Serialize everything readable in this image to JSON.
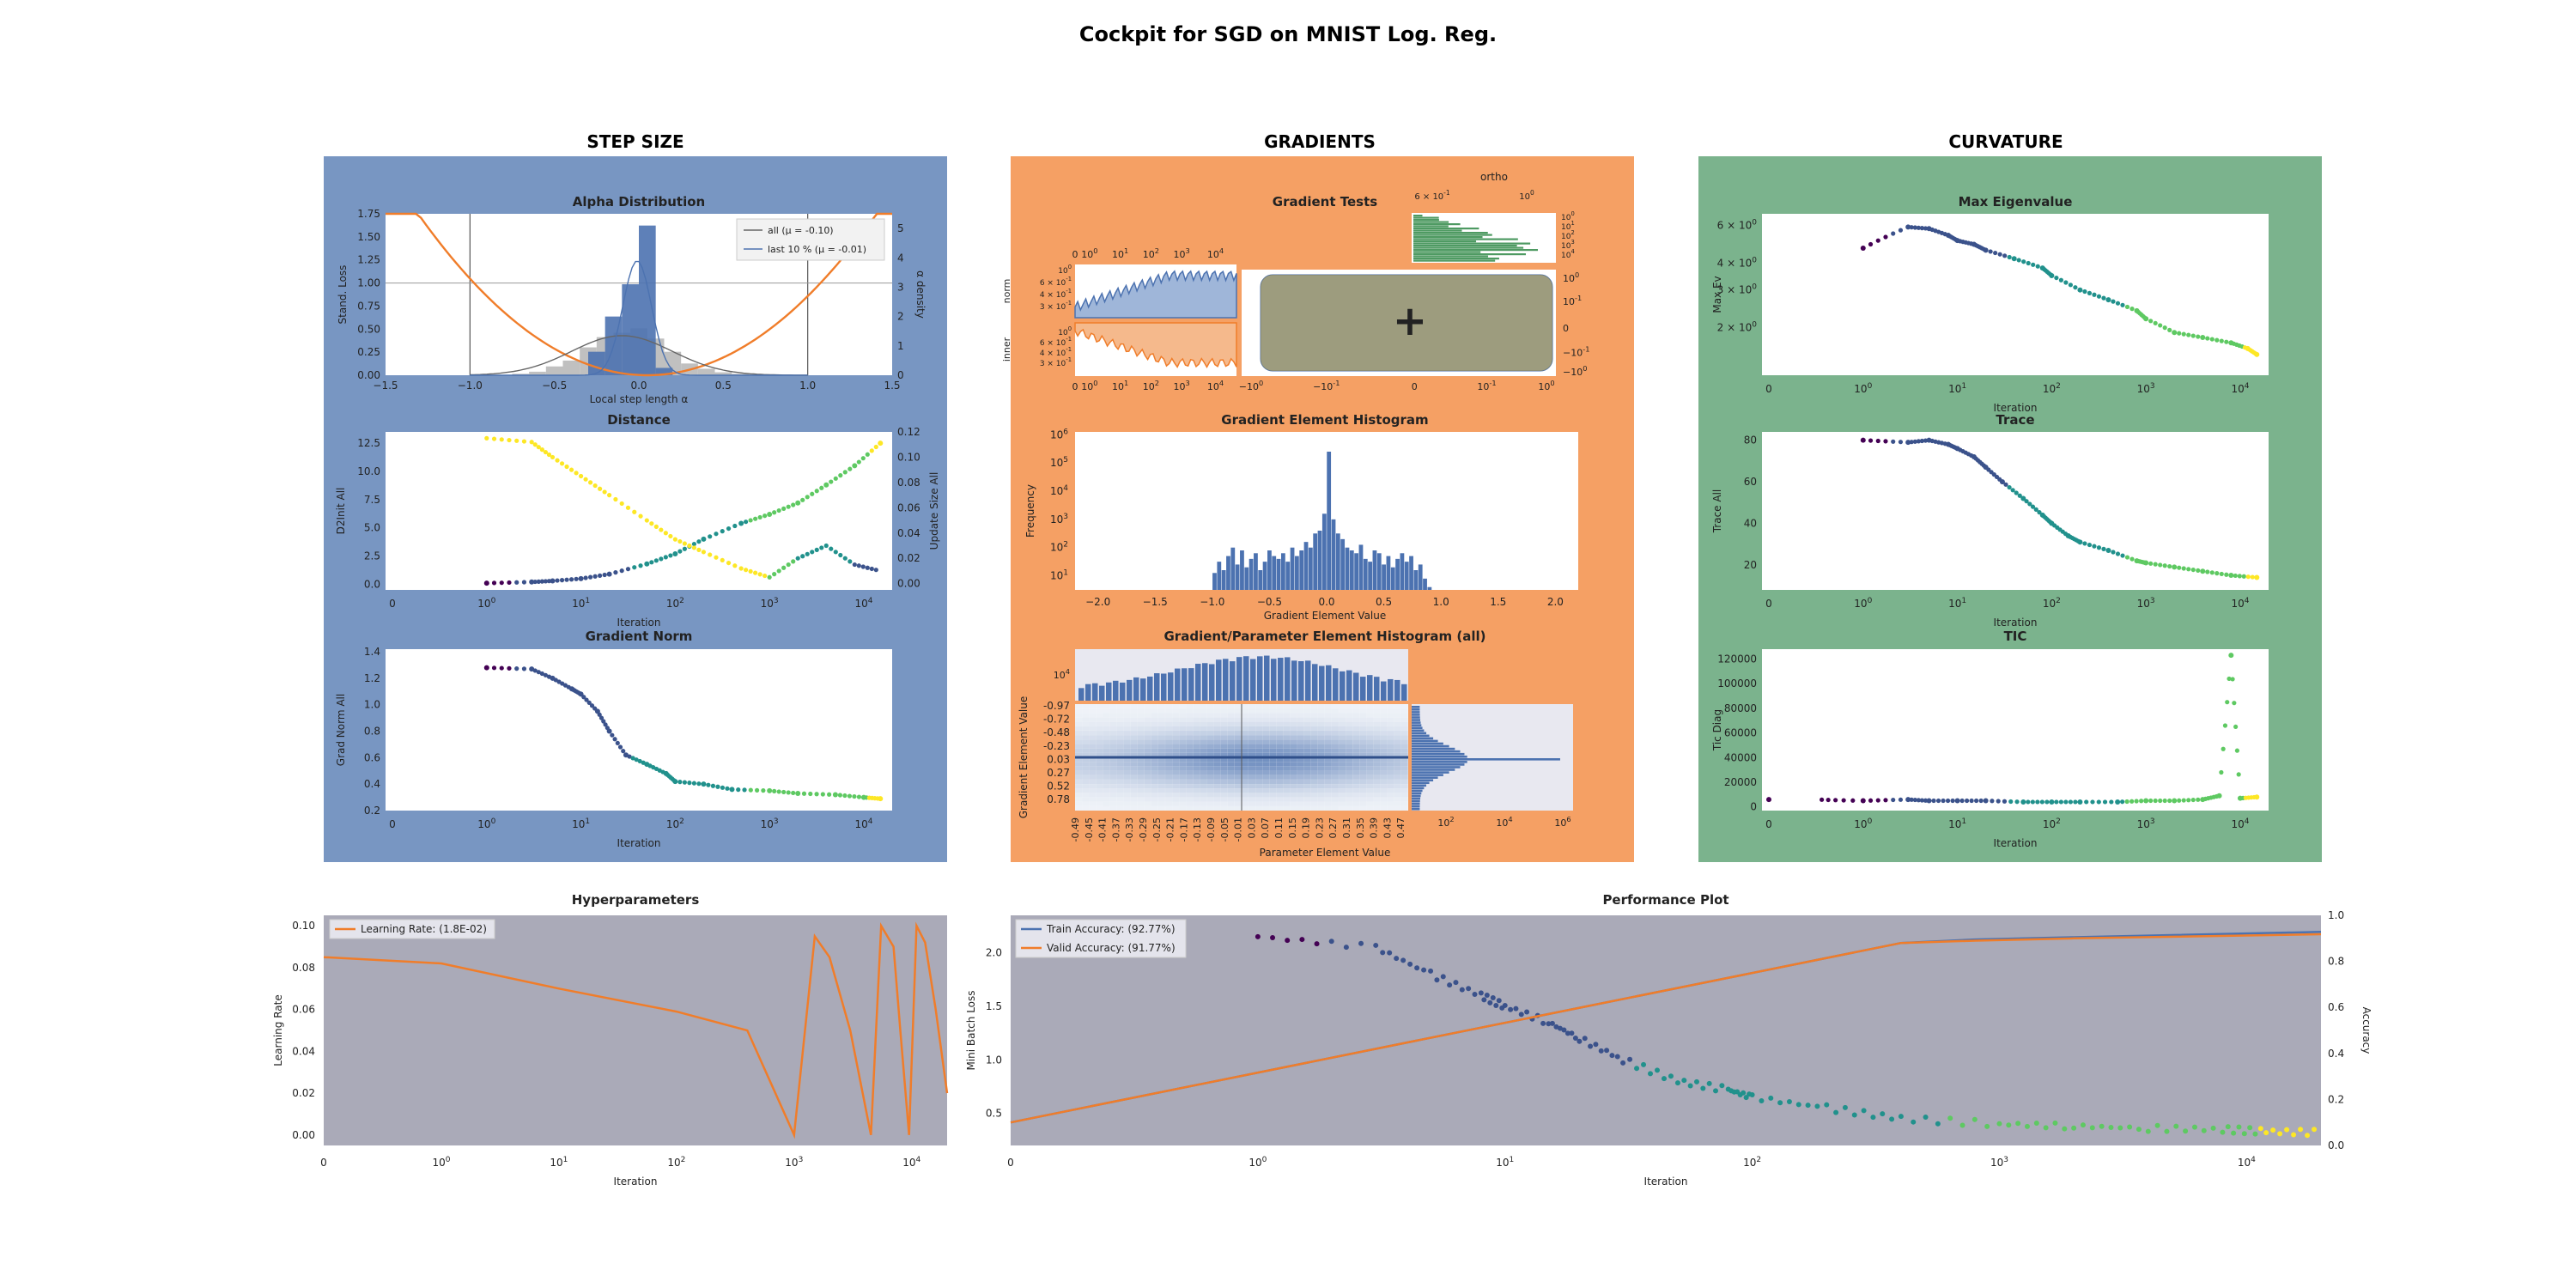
{
  "page": {
    "title": "Cockpit for SGD on MNIST Log. Reg.",
    "sections": {
      "step_size": "STEP SIZE",
      "gradients": "GRADIENTS",
      "curvature": "CURVATURE"
    },
    "colors": {
      "step_size_bg": "#7896c2",
      "gradients_bg": "#f5a064",
      "curvature_bg": "#7bb38d",
      "plot_bg": "#aaaab8",
      "orange": "#f07d2a",
      "blue": "#4c72b0",
      "green": "#4e9a62"
    }
  },
  "chart_data": [
    {
      "id": "alpha",
      "type": "histogram",
      "title": "Alpha Distribution",
      "xlabel": "Local step length α",
      "ylabel": "Stand. Loss",
      "y2label": "α density",
      "xlim": [
        -1.5,
        1.5
      ],
      "ylim": [
        0,
        1.75
      ],
      "y2lim": [
        0,
        5.5
      ],
      "xticks": [
        "−1.5",
        "−1.0",
        "−0.5",
        "0.0",
        "0.5",
        "1.0",
        "1.5"
      ],
      "yticks": [
        "0.00",
        "0.25",
        "0.50",
        "0.75",
        "1.00",
        "1.25",
        "1.50",
        "1.75"
      ],
      "y2ticks": [
        "0",
        "1",
        "2",
        "3",
        "4",
        "5"
      ],
      "legend": [
        "all (μ = -0.10)",
        "last 10 % (μ = -0.01)"
      ],
      "bins_all": {
        "x": [
          -0.7,
          -0.6,
          -0.5,
          -0.4,
          -0.3,
          -0.2,
          -0.1,
          0.0,
          0.1,
          0.2,
          0.3,
          0.4,
          0.5,
          0.6,
          0.7
        ],
        "values": [
          0.05,
          0.12,
          0.3,
          0.5,
          0.95,
          1.3,
          1.45,
          1.6,
          1.25,
          0.8,
          0.4,
          0.22,
          0.1,
          0.05,
          0.02
        ]
      },
      "bins_last": {
        "x": [
          -0.25,
          -0.15,
          -0.05,
          0.05,
          0.15
        ],
        "values": [
          0.8,
          2.0,
          3.1,
          5.1,
          0.25
        ]
      }
    },
    {
      "id": "distance",
      "type": "scatter",
      "title": "Distance",
      "xlabel": "Iteration",
      "ylabel": "D2Init All",
      "y2label": "Update Size All",
      "xscale": "symlog",
      "xticks": [
        "0",
        "10^0",
        "10^1",
        "10^2",
        "10^3",
        "10^4"
      ],
      "ylim": [
        -0.5,
        13.5
      ],
      "yticks": [
        "0.0",
        "2.5",
        "5.0",
        "7.5",
        "10.0",
        "12.5"
      ],
      "y2lim": [
        -0.005,
        0.12
      ],
      "y2ticks": [
        "0.00",
        "0.02",
        "0.04",
        "0.06",
        "0.08",
        "0.10",
        "0.12"
      ],
      "d2init": {
        "x": [
          1,
          3,
          5,
          10,
          20,
          50,
          100,
          200,
          500,
          1000,
          2000,
          4000,
          8000,
          15000
        ],
        "y": [
          0.1,
          0.2,
          0.3,
          0.5,
          0.9,
          1.8,
          2.7,
          4.0,
          5.4,
          6.2,
          7.2,
          8.8,
          10.5,
          12.5
        ]
      },
      "update_size": {
        "x": [
          1,
          3,
          5,
          10,
          20,
          50,
          100,
          200,
          500,
          1000,
          2000,
          4000,
          8000,
          15000
        ],
        "y": [
          0.115,
          0.112,
          0.1,
          0.085,
          0.07,
          0.05,
          0.035,
          0.025,
          0.012,
          0.005,
          0.02,
          0.03,
          0.015,
          0.01
        ]
      }
    },
    {
      "id": "gradnorm",
      "type": "scatter",
      "title": "Gradient Norm",
      "xlabel": "Iteration",
      "ylabel": "Grad Norm All",
      "xscale": "symlog",
      "xticks": [
        "0",
        "10^0",
        "10^1",
        "10^2",
        "10^3",
        "10^4"
      ],
      "ylim": [
        0.2,
        1.42
      ],
      "yticks": [
        "0.2",
        "0.4",
        "0.6",
        "0.8",
        "1.0",
        "1.2",
        "1.4"
      ],
      "points": {
        "x": [
          1,
          3,
          5,
          8,
          10,
          15,
          20,
          30,
          50,
          80,
          100,
          200,
          400,
          1000,
          2000,
          5000,
          10000,
          15000
        ],
        "y": [
          1.28,
          1.27,
          1.2,
          1.12,
          1.08,
          0.95,
          0.8,
          0.62,
          0.55,
          0.48,
          0.42,
          0.4,
          0.36,
          0.35,
          0.33,
          0.32,
          0.3,
          0.29
        ]
      }
    },
    {
      "id": "gradtests",
      "type": "line",
      "title": "Gradient Tests",
      "top_axis_label": "ortho",
      "norm_label": "norm",
      "inner_label": "inner",
      "xticks": [
        "0",
        "10^0",
        "10^1",
        "10^2",
        "10^3",
        "10^4"
      ],
      "norm_yticks": [
        "10^0",
        "6 × 10^-1",
        "4 × 10^-1",
        "3 × 10^-1"
      ],
      "inner_yticks": [
        "10^0",
        "6 × 10^-1",
        "4 × 10^-1",
        "3 × 10^-1"
      ],
      "ortho_xticks": [
        "6 × 10^-1",
        "10^0"
      ],
      "ortho_yticks": [
        "10^0",
        "10^1",
        "10^2",
        "10^3",
        "10^4"
      ],
      "center_xticks": [
        "−10^0",
        "−10^-1",
        "0",
        "10^-1",
        "10^0"
      ],
      "center_yticks": [
        "10^0",
        "10^-1",
        "0",
        "−10^-1",
        "−10^0"
      ]
    },
    {
      "id": "gradhist",
      "type": "bar",
      "title": "Gradient Element Histogram",
      "xlabel": "Gradient Element Value",
      "ylabel": "Frequency",
      "xlim": [
        -2.2,
        2.2
      ],
      "xticks": [
        "−2.0",
        "−1.5",
        "−1.0",
        "−0.5",
        "0.0",
        "0.5",
        "1.0",
        "1.5",
        "2.0"
      ],
      "yscale": "log",
      "ylim_exp": [
        0.5,
        6.1
      ],
      "yticks": [
        "10^1",
        "10^2",
        "10^3",
        "10^4",
        "10^5",
        "10^6"
      ],
      "bins": {
        "x": [
          -0.98,
          -0.94,
          -0.9,
          -0.86,
          -0.82,
          -0.78,
          -0.74,
          -0.7,
          -0.66,
          -0.62,
          -0.58,
          -0.54,
          -0.5,
          -0.46,
          -0.42,
          -0.38,
          -0.34,
          -0.3,
          -0.26,
          -0.22,
          -0.18,
          -0.14,
          -0.1,
          -0.06,
          -0.02,
          0.02,
          0.06,
          0.1,
          0.14,
          0.18,
          0.22,
          0.26,
          0.3,
          0.34,
          0.38,
          0.42,
          0.46,
          0.5,
          0.54,
          0.58,
          0.62,
          0.66,
          0.7,
          0.74,
          0.78,
          0.82,
          0.86,
          0.9,
          0.94,
          0.98
        ],
        "values": [
          1.1,
          1.5,
          1.2,
          1.7,
          2.0,
          1.4,
          1.9,
          1.3,
          1.6,
          1.8,
          1.2,
          1.5,
          1.9,
          1.7,
          1.6,
          1.8,
          1.5,
          2.0,
          1.7,
          1.9,
          2.2,
          2.0,
          2.5,
          2.6,
          3.2,
          5.4,
          3.0,
          2.5,
          2.3,
          2.0,
          1.9,
          1.8,
          2.1,
          1.6,
          1.5,
          1.9,
          1.8,
          1.4,
          1.7,
          1.3,
          1.6,
          1.8,
          1.5,
          1.7,
          1.2,
          1.4,
          0.9,
          0.6,
          0.4,
          0.2
        ]
      }
    },
    {
      "id": "paramhist",
      "type": "heatmap",
      "title": "Gradient/Parameter Element Histogram (all)",
      "xlabel": "Parameter Element Value",
      "ylabel": "Gradient Element Value",
      "xticks": [
        "-0.49",
        "-0.45",
        "-0.41",
        "-0.37",
        "-0.33",
        "-0.29",
        "-0.25",
        "-0.21",
        "-0.17",
        "-0.13",
        "-0.09",
        "-0.05",
        "-0.01",
        "0.03",
        "0.07",
        "0.11",
        "0.15",
        "0.19",
        "0.23",
        "0.27",
        "0.31",
        "0.35",
        "0.39",
        "0.43",
        "0.47"
      ],
      "yticks": [
        "-0.97",
        "-0.72",
        "-0.48",
        "-0.23",
        "0.03",
        "0.27",
        "0.52",
        "0.78"
      ],
      "top_yticks": [
        "10^4"
      ],
      "right_xticks": [
        "10^2",
        "10^4",
        "10^6"
      ]
    },
    {
      "id": "maxev",
      "type": "scatter",
      "title": "Max Eigenvalue",
      "xlabel": "Iteration",
      "ylabel": "Max Ev",
      "xscale": "symlog",
      "xticks": [
        "0",
        "10^0",
        "10^1",
        "10^2",
        "10^3",
        "10^4"
      ],
      "yscale": "log",
      "yticks": [
        "2 × 10^0",
        "3 × 10^0",
        "4 × 10^0",
        "6 × 10^0"
      ],
      "ylim": [
        1.2,
        6.8
      ],
      "points": {
        "x": [
          1,
          3,
          5,
          8,
          10,
          15,
          20,
          40,
          80,
          100,
          200,
          400,
          800,
          1000,
          2000,
          4000,
          8000,
          12000,
          15000
        ],
        "y": [
          4.7,
          5.9,
          5.8,
          5.4,
          5.1,
          4.9,
          4.6,
          4.2,
          3.8,
          3.5,
          3.0,
          2.7,
          2.4,
          2.2,
          1.9,
          1.8,
          1.7,
          1.6,
          1.5
        ]
      }
    },
    {
      "id": "trace",
      "type": "scatter",
      "title": "Trace",
      "xlabel": "Iteration",
      "ylabel": "Trace All",
      "xscale": "symlog",
      "xticks": [
        "0",
        "10^0",
        "10^1",
        "10^2",
        "10^3",
        "10^4"
      ],
      "ylim": [
        8,
        84
      ],
      "yticks": [
        "20",
        "40",
        "60",
        "80"
      ],
      "points": {
        "x": [
          1,
          3,
          5,
          8,
          10,
          15,
          20,
          30,
          50,
          80,
          100,
          150,
          200,
          400,
          800,
          1000,
          2000,
          4000,
          8000,
          15000
        ],
        "y": [
          80,
          79,
          80,
          78,
          76,
          72,
          67,
          60,
          52,
          44,
          40,
          34,
          31,
          27,
          22,
          21,
          19,
          17,
          15,
          14
        ]
      }
    },
    {
      "id": "tic",
      "type": "scatter",
      "title": "TIC",
      "xlabel": "Iteration",
      "ylabel": "Tic Diag",
      "xscale": "symlog",
      "xticks": [
        "0",
        "10^0",
        "10^1",
        "10^2",
        "10^3",
        "10^4"
      ],
      "ylim": [
        -3000,
        128000
      ],
      "yticks": [
        "0",
        "20000",
        "40000",
        "60000",
        "80000",
        "100000",
        "120000"
      ],
      "points": {
        "x": [
          0,
          1,
          3,
          5,
          10,
          20,
          50,
          100,
          200,
          500,
          1000,
          2000,
          4000,
          6000,
          8000,
          10000,
          15000
        ],
        "y": [
          6000,
          5000,
          6000,
          5000,
          5000,
          5000,
          4000,
          4000,
          4000,
          4000,
          5000,
          5000,
          6000,
          9000,
          123000,
          7000,
          8000
        ]
      }
    },
    {
      "id": "hyper",
      "type": "line",
      "title": "Hyperparameters",
      "xlabel": "Iteration",
      "ylabel": "Learning Rate",
      "xscale": "symlog",
      "xticks": [
        "0",
        "10^0",
        "10^1",
        "10^2",
        "10^3",
        "10^4"
      ],
      "ylim": [
        -0.005,
        0.105
      ],
      "yticks": [
        "0.00",
        "0.02",
        "0.04",
        "0.06",
        "0.08",
        "0.10"
      ],
      "legend": [
        "Learning Rate: (1.8E-02)"
      ],
      "series": [
        {
          "name": "Learning Rate: (1.8E-02)",
          "x": [
            0,
            1,
            10,
            100,
            400,
            1000,
            1500,
            2000,
            3000,
            4500,
            5500,
            7000,
            8000,
            9500,
            11000,
            13000,
            16000,
            20000
          ],
          "y": [
            0.085,
            0.082,
            0.07,
            0.059,
            0.05,
            0.0,
            0.095,
            0.085,
            0.05,
            0.0,
            0.1,
            0.09,
            0.05,
            0.0,
            0.1,
            0.092,
            0.06,
            0.02
          ]
        }
      ]
    },
    {
      "id": "performance",
      "type": "line",
      "title": "Performance Plot",
      "xlabel": "Iteration",
      "ylabel": "Mini Batch Loss",
      "y2label": "Accuracy",
      "xscale": "symlog",
      "xticks": [
        "0",
        "10^0",
        "10^1",
        "10^2",
        "10^3",
        "10^4"
      ],
      "ylim": [
        0.2,
        2.35
      ],
      "yticks": [
        "0.5",
        "1.0",
        "1.5",
        "2.0"
      ],
      "y2lim": [
        0,
        1
      ],
      "y2ticks": [
        "0.0",
        "0.2",
        "0.4",
        "0.6",
        "0.8",
        "1.0"
      ],
      "legend": [
        "Train Accuracy: (92.77%)",
        "Valid Accuracy: (91.77%)"
      ],
      "loss": {
        "x": [
          1,
          3,
          5,
          8,
          10,
          15,
          20,
          30,
          50,
          80,
          100,
          200,
          400,
          1000,
          2000,
          4000,
          8000,
          12000,
          20000
        ],
        "y": [
          2.15,
          2.05,
          1.8,
          1.6,
          1.5,
          1.35,
          1.2,
          1.0,
          0.8,
          0.72,
          0.65,
          0.55,
          0.45,
          0.4,
          0.38,
          0.36,
          0.35,
          0.33,
          0.32
        ]
      },
      "series": [
        {
          "name": "Train Accuracy: (92.77%)",
          "x": [
            0,
            400,
            800,
            2000,
            20000
          ],
          "y": [
            0.1,
            0.88,
            0.895,
            0.905,
            0.928
          ]
        },
        {
          "name": "Valid Accuracy: (91.77%)",
          "x": [
            0,
            400,
            800,
            2000,
            20000
          ],
          "y": [
            0.1,
            0.88,
            0.89,
            0.9,
            0.918
          ]
        }
      ]
    }
  ]
}
